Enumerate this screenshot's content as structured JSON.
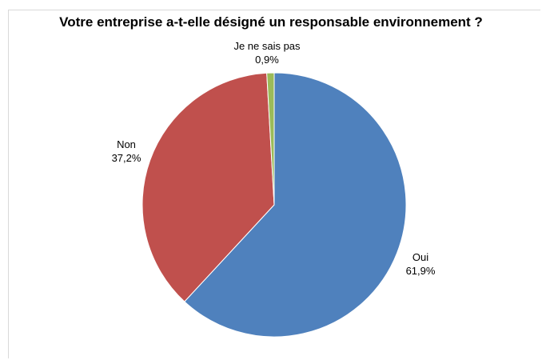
{
  "chart_data": {
    "type": "pie",
    "title": "Votre entreprise a-t-elle désigné un responsable environnement ?",
    "slices": [
      {
        "label": "Oui",
        "value": 61.9,
        "value_label": "61,9%",
        "color": "#4F81BD"
      },
      {
        "label": "Non",
        "value": 37.2,
        "value_label": "37,2%",
        "color": "#C0504D"
      },
      {
        "label": "Je ne sais pas",
        "value": 0.9,
        "value_label": "0,9%",
        "color": "#9BBB59"
      }
    ],
    "legend": "none"
  }
}
